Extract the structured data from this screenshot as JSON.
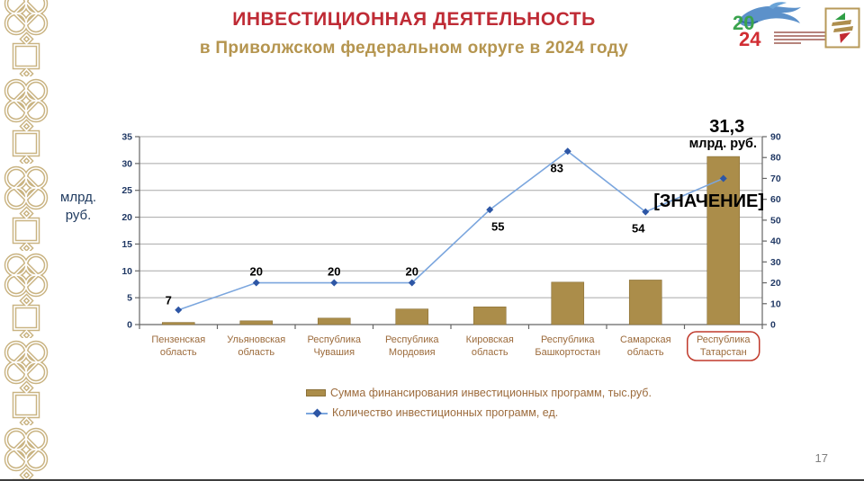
{
  "slide": {
    "title": "ИНВЕСТИЦИОННАЯ ДЕЯТЕЛЬНОСТЬ",
    "subtitle": "в Приволжском федеральном округе в 2024 году",
    "page_number": "17"
  },
  "header_logos": {
    "year_badge": {
      "digits_top": "20",
      "digits_bottom": "24"
    }
  },
  "chart_data": {
    "type": "bar-line-combo",
    "categories": [
      "Пензенская область",
      "Ульяновская область",
      "Республика Чувашия",
      "Республика Мордовия",
      "Кировская область",
      "Республика Башкортостан",
      "Самарская область",
      "Республика Татарстан"
    ],
    "series": [
      {
        "name": "Сумма финансирования инвестиционных программ, тыс.руб.",
        "type": "bar",
        "axis": "left",
        "color": "#ab8d4a",
        "values": [
          0.4,
          0.7,
          1.2,
          2.9,
          3.3,
          7.9,
          8.3,
          31.3
        ]
      },
      {
        "name": "Количество инвестиционных программ, ед.",
        "type": "line",
        "axis": "right",
        "color": "#7ba6de",
        "marker_color": "#2d56a5",
        "values": [
          7,
          20,
          20,
          20,
          55,
          83,
          54,
          70
        ],
        "point_labels": [
          "7",
          "20",
          "20",
          "20",
          "55",
          "83",
          "54",
          "[ЗНАЧЕНИЕ]"
        ]
      }
    ],
    "left_axis": {
      "title": "млрд. руб.",
      "min": 0,
      "max": 35,
      "step": 5
    },
    "right_axis": {
      "min": 0,
      "max": 90,
      "step": 10
    },
    "grid": true,
    "legend_position": "bottom",
    "top_bar_annotation": {
      "value": "31,3",
      "unit": "млрд. руб."
    },
    "highlighted_category": "Республика Татарстан",
    "highlight_color": "#c0392b"
  }
}
